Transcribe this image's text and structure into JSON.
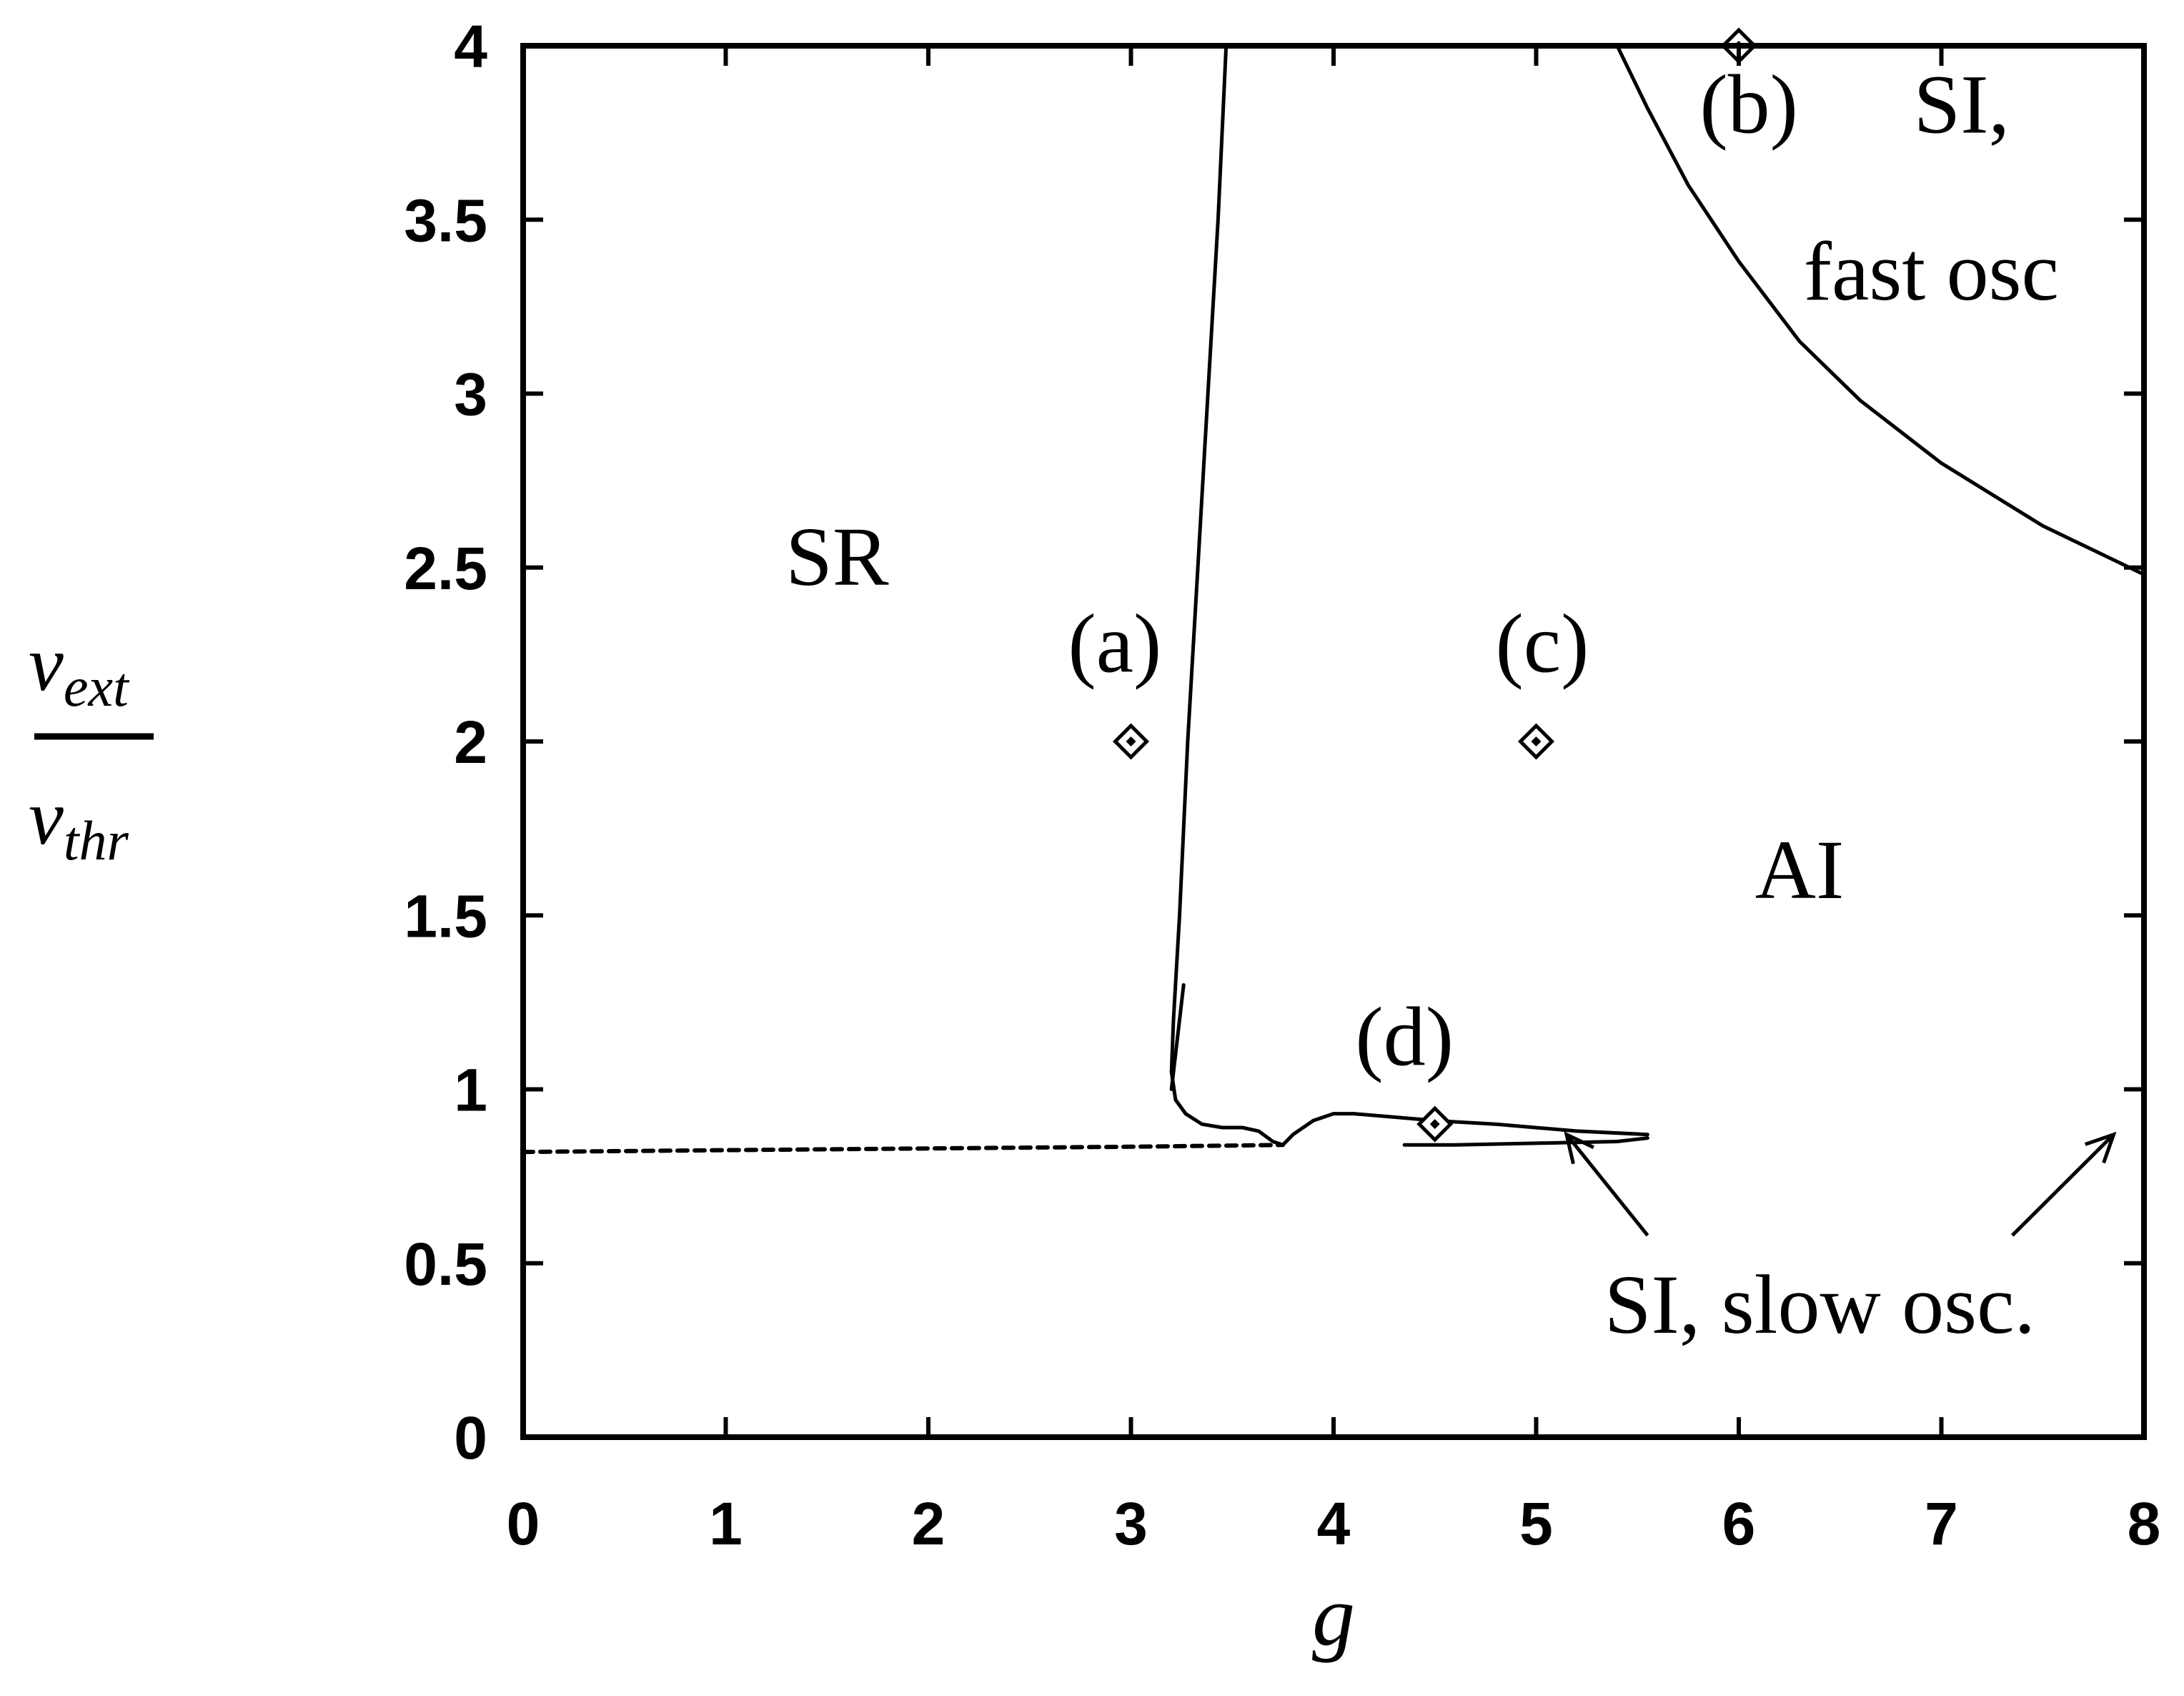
{
  "chart_data": {
    "type": "line",
    "xlabel": "g",
    "ylabel": {
      "numerator": "ν",
      "numerator_sub": "ext",
      "denominator": "ν",
      "denominator_sub": "thr"
    },
    "xlim": [
      0,
      8
    ],
    "ylim": [
      0,
      4
    ],
    "x_ticks": [
      "0",
      "1",
      "2",
      "3",
      "4",
      "5",
      "6",
      "7",
      "8"
    ],
    "y_ticks": [
      "0",
      "0.5",
      "1",
      "1.5",
      "2",
      "2.5",
      "3",
      "3.5",
      "4"
    ],
    "grid": false,
    "region_labels": [
      {
        "text": "SR",
        "x": 1.55,
        "y": 2.45
      },
      {
        "text": "AI",
        "x": 6.3,
        "y": 1.55
      },
      {
        "text": "SI,",
        "x": 7.1,
        "y": 3.75
      },
      {
        "text": "fast osc",
        "x": 6.95,
        "y": 3.27
      },
      {
        "text": "SI, slow osc.",
        "x": 6.4,
        "y": 0.3
      }
    ],
    "point_labels": [
      {
        "text": "(a)",
        "x": 2.92,
        "y": 2.2
      },
      {
        "text": "(b)",
        "x": 6.05,
        "y": 3.75
      },
      {
        "text": "(c)",
        "x": 5.03,
        "y": 2.2
      },
      {
        "text": "(d)",
        "x": 4.35,
        "y": 1.07
      }
    ],
    "points": [
      {
        "x": 3.0,
        "y": 2.0
      },
      {
        "x": 6.0,
        "y": 4.0
      },
      {
        "x": 5.0,
        "y": 2.0
      },
      {
        "x": 4.5,
        "y": 0.9
      }
    ],
    "series": [
      {
        "style": "solid",
        "x": [
          3.47,
          3.43,
          3.38,
          3.33,
          3.28,
          3.24,
          3.21,
          3.2,
          3.22,
          3.27,
          3.35,
          3.45,
          3.55,
          3.63,
          3.7,
          3.75,
          3.8,
          3.9,
          4.0,
          4.1,
          4.3,
          4.5,
          4.8,
          5.2,
          5.55
        ],
        "y": [
          4.0,
          3.5,
          3.0,
          2.5,
          2.0,
          1.5,
          1.2,
          1.05,
          0.97,
          0.93,
          0.9,
          0.89,
          0.89,
          0.88,
          0.85,
          0.84,
          0.87,
          0.91,
          0.93,
          0.93,
          0.92,
          0.91,
          0.9,
          0.88,
          0.87
        ]
      },
      {
        "style": "solid",
        "x": [
          5.4,
          5.55,
          5.75,
          6.0,
          6.3,
          6.6,
          7.0,
          7.5,
          8.0
        ],
        "y": [
          4.0,
          3.82,
          3.6,
          3.38,
          3.15,
          2.98,
          2.8,
          2.62,
          2.48
        ]
      },
      {
        "style": "solid",
        "x": [
          3.2,
          3.26
        ],
        "y": [
          1.0,
          1.3
        ]
      },
      {
        "style": "dashed",
        "x": [
          0.0,
          1.0,
          2.0,
          3.0,
          3.75
        ],
        "y": [
          0.82,
          0.825,
          0.83,
          0.835,
          0.84
        ]
      },
      {
        "style": "solid",
        "x": [
          4.35,
          4.6,
          5.0,
          5.4,
          5.55
        ],
        "y": [
          0.84,
          0.84,
          0.845,
          0.85,
          0.86
        ]
      }
    ],
    "arrows": [
      {
        "from": [
          5.55,
          0.58
        ],
        "to": [
          5.15,
          0.87
        ]
      },
      {
        "from": [
          7.35,
          0.58
        ],
        "to": [
          7.85,
          0.87
        ]
      }
    ]
  }
}
